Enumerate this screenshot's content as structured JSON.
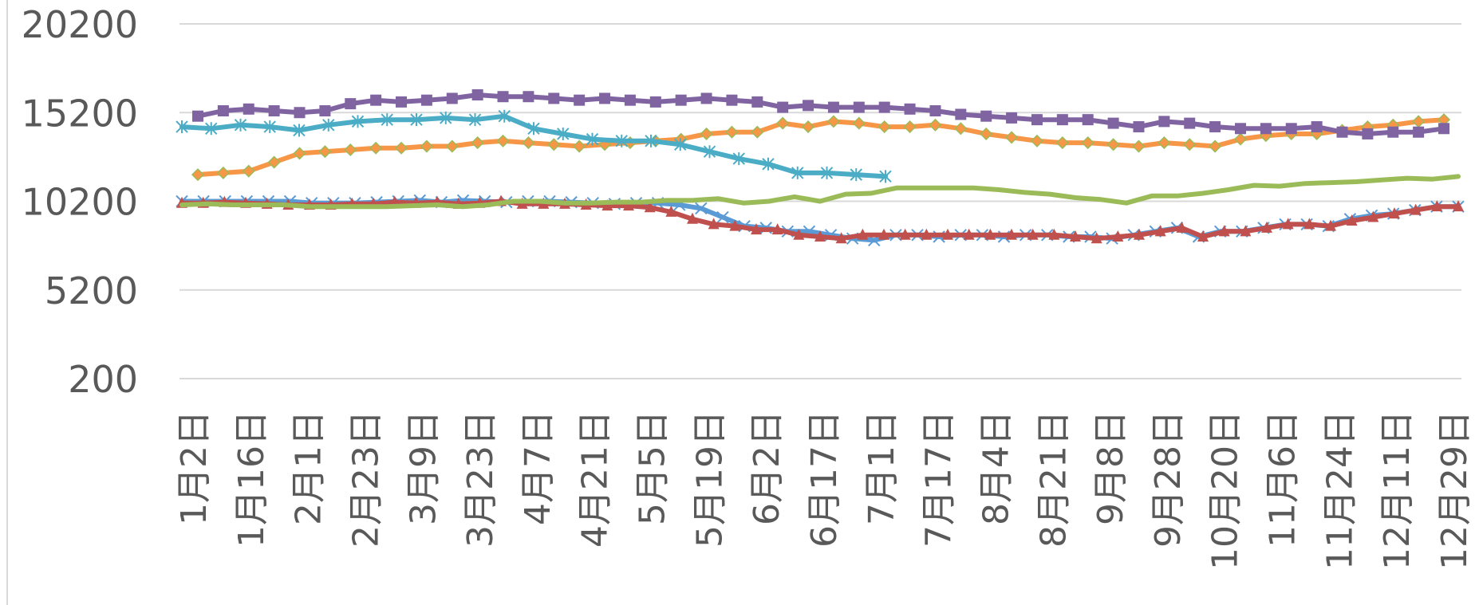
{
  "chart_data": {
    "type": "line",
    "title": "",
    "xlabel": "",
    "ylabel": "",
    "ylim": [
      200,
      20200
    ],
    "y_ticks": [
      "20200",
      "15200",
      "10200",
      "5200",
      "200"
    ],
    "grid": true,
    "x_tick_labels": [
      "1月2日",
      "1月16日",
      "2月1日",
      "2月23日",
      "3月9日",
      "3月23日",
      "4月7日",
      "4月21日",
      "5月5日",
      "5月19日",
      "6月2日",
      "6月17日",
      "7月1日",
      "7月17日",
      "8月4日",
      "8月21日",
      "9月8日",
      "9月28日",
      "10月20日",
      "11月6日",
      "11月24日",
      "12月11日",
      "12月29日"
    ],
    "series": [
      {
        "color": "#5b9bd5",
        "marker": "x",
        "values": [
          10200,
          10200,
          10200,
          10200,
          10200,
          10200,
          10100,
          10100,
          10100,
          10150,
          10200,
          10250,
          10150,
          10250,
          10200,
          10150,
          10200,
          10200,
          10150,
          10100,
          10050,
          10100,
          10100,
          10000,
          9800,
          9300,
          8800,
          8700,
          8500,
          8500,
          8300,
          8100,
          8000,
          8300,
          8300,
          8200,
          8300,
          8300,
          8200,
          8300,
          8300,
          8200,
          8200,
          8100,
          8300,
          8500,
          8700,
          8200,
          8500,
          8500,
          8700,
          8900,
          8900,
          8800,
          9200,
          9400,
          9500,
          9700,
          9900,
          9900
        ]
      },
      {
        "color": "#c0504d",
        "marker": "triangle",
        "values": [
          10100,
          10100,
          10150,
          10100,
          10050,
          10000,
          10000,
          10000,
          10050,
          10050,
          10150,
          10100,
          10150,
          10050,
          10100,
          10200,
          10050,
          10050,
          10050,
          10000,
          9950,
          9950,
          9850,
          9600,
          9200,
          8900,
          8800,
          8600,
          8600,
          8300,
          8200,
          8100,
          8300,
          8300,
          8300,
          8300,
          8300,
          8300,
          8300,
          8300,
          8300,
          8300,
          8200,
          8100,
          8200,
          8300,
          8500,
          8700,
          8200,
          8500,
          8500,
          8700,
          8900,
          8900,
          8800,
          9100,
          9300,
          9500,
          9700,
          9900,
          9900
        ]
      },
      {
        "color": "#9bbb59",
        "marker": "none",
        "values": [
          10000,
          10050,
          10000,
          10000,
          10000,
          9900,
          9900,
          9900,
          9900,
          9950,
          10000,
          9900,
          10000,
          10200,
          10200,
          10100,
          10100,
          10150,
          10150,
          10250,
          10250,
          10350,
          10100,
          10200,
          10450,
          10200,
          10600,
          10650,
          10950,
          10950,
          10950,
          10950,
          10850,
          10700,
          10600,
          10400,
          10300,
          10100,
          10500,
          10500,
          10650,
          10850,
          11100,
          11050,
          11200,
          11250,
          11300,
          11400,
          11500,
          11450,
          11600
        ]
      },
      {
        "color": "#f79646",
        "marker": "diamond",
        "values": [
          11700,
          11800,
          11900,
          12400,
          12900,
          13000,
          13100,
          13200,
          13200,
          13300,
          13300,
          13500,
          13600,
          13500,
          13400,
          13300,
          13400,
          13500,
          13600,
          13700,
          14000,
          14100,
          14100,
          14600,
          14400,
          14700,
          14600,
          14400,
          14400,
          14500,
          14300,
          14000,
          13800,
          13600,
          13500,
          13500,
          13400,
          13300,
          13500,
          13400,
          13300,
          13700,
          13900,
          14000,
          14000,
          14200,
          14400,
          14500,
          14700,
          14800
        ]
      },
      {
        "color": "#8064a2",
        "marker": "square",
        "values": [
          15000,
          15300,
          15400,
          15300,
          15200,
          15300,
          15700,
          15900,
          15800,
          15900,
          16000,
          16200,
          16100,
          16100,
          16000,
          15900,
          16000,
          15900,
          15800,
          15900,
          16000,
          15900,
          15800,
          15500,
          15600,
          15500,
          15500,
          15500,
          15400,
          15300,
          15100,
          15000,
          14900,
          14800,
          14800,
          14800,
          14600,
          14400,
          14700,
          14600,
          14400,
          14300,
          14300,
          14300,
          14400,
          14100,
          14000,
          14100,
          14100,
          14300
        ]
      },
      {
        "color": "#4bacc6",
        "marker": "asterisk",
        "values": [
          14400,
          14300,
          14500,
          14400,
          14200,
          14500,
          14700,
          14800,
          14800,
          14900,
          14800,
          15000,
          14300,
          14000,
          13700,
          13600,
          13600,
          13400,
          13000,
          12600,
          12300,
          11800,
          11800,
          11700,
          11600
        ]
      }
    ]
  }
}
